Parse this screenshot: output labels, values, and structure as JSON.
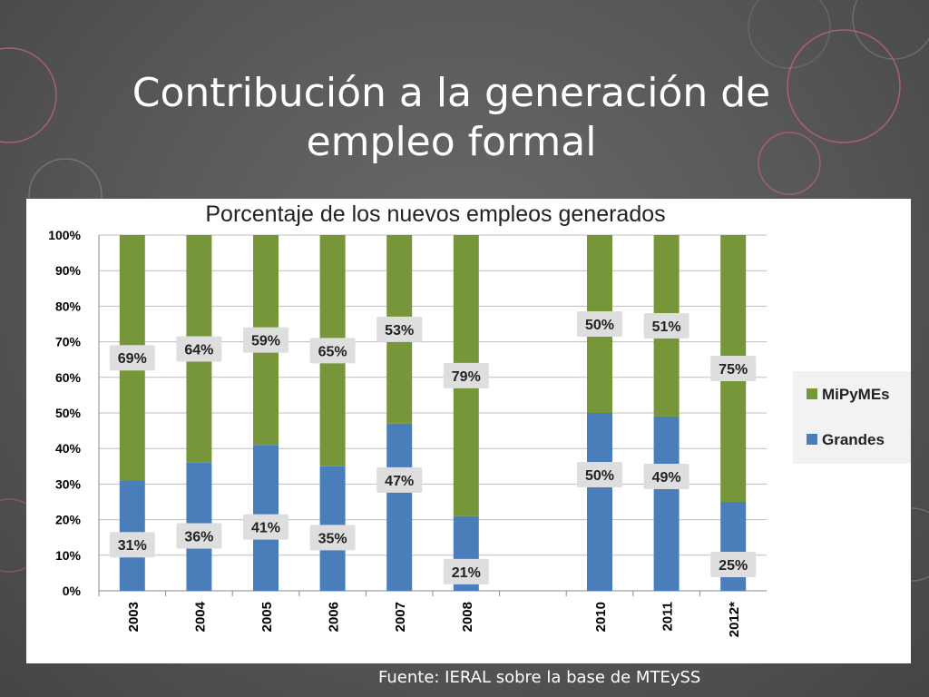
{
  "slide": {
    "title_line1": "Contribución a la generación de",
    "title_line2": "empleo formal",
    "source": "Fuente: IERAL sobre la base de MTEySS"
  },
  "colors": {
    "mipymes": "#77963a",
    "grandes": "#4a7ebb",
    "label_box": "#dedede",
    "grid": "#bfbfbf",
    "axis_text": "#000000"
  },
  "chart_data": {
    "type": "bar",
    "stacked": true,
    "title": "Porcentaje de los nuevos empleos generados",
    "categories": [
      "2003",
      "2004",
      "2005",
      "2006",
      "2007",
      "2008",
      "",
      "2010",
      "2011",
      "2012*"
    ],
    "series": [
      {
        "name": "Grandes",
        "values": [
          31,
          36,
          41,
          35,
          47,
          21,
          null,
          50,
          49,
          25
        ],
        "labels": [
          "31%",
          "36%",
          "41%",
          "35%",
          "47%",
          "21%",
          "",
          "50%",
          "49%",
          "25%"
        ]
      },
      {
        "name": "MiPyMEs",
        "values": [
          69,
          64,
          59,
          65,
          53,
          79,
          null,
          50,
          51,
          75
        ],
        "labels": [
          "69%",
          "64%",
          "59%",
          "65%",
          "53%",
          "79%",
          "",
          "50%",
          "51%",
          "75%"
        ]
      }
    ],
    "ylim": [
      0,
      100
    ],
    "yticks": [
      "0%",
      "10%",
      "20%",
      "30%",
      "40%",
      "50%",
      "60%",
      "70%",
      "80%",
      "90%",
      "100%"
    ],
    "legend": [
      "MiPyMEs",
      "Grandes"
    ],
    "legend_position": "right",
    "grid": true
  }
}
